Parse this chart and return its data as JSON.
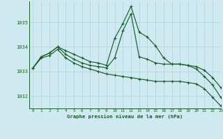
{
  "background_color": "#ceeaf0",
  "grid_color": "#aad4de",
  "line_color": "#1a5c2a",
  "title": "Graphe pression niveau de la mer (hPa)",
  "xlim": [
    -0.5,
    23
  ],
  "ylim": [
    1031.5,
    1035.85
  ],
  "yticks": [
    1032,
    1033,
    1034,
    1035
  ],
  "xticks": [
    0,
    1,
    2,
    3,
    4,
    5,
    6,
    7,
    8,
    9,
    10,
    11,
    12,
    13,
    14,
    15,
    16,
    17,
    18,
    19,
    20,
    21,
    22,
    23
  ],
  "series": [
    {
      "x": [
        0,
        1,
        2,
        3,
        4,
        5,
        6,
        7,
        8,
        9,
        10,
        11,
        12,
        13,
        14,
        15,
        16,
        17,
        18,
        19,
        20,
        21,
        22,
        23
      ],
      "y": [
        1033.15,
        1033.6,
        1033.75,
        1034.0,
        1033.85,
        1033.7,
        1033.55,
        1033.4,
        1033.35,
        1033.25,
        1034.35,
        1034.95,
        1035.65,
        1034.6,
        1034.4,
        1034.05,
        1033.55,
        1033.3,
        1033.3,
        1033.25,
        1033.2,
        1033.05,
        1032.75,
        1032.35
      ]
    },
    {
      "x": [
        0,
        1,
        2,
        3,
        4,
        5,
        6,
        7,
        8,
        9,
        10,
        11,
        12,
        13,
        14,
        15,
        16,
        17,
        18,
        19,
        20,
        21,
        22,
        23
      ],
      "y": [
        1033.15,
        1033.6,
        1033.75,
        1034.0,
        1033.7,
        1033.5,
        1033.35,
        1033.25,
        1033.2,
        1033.15,
        1033.55,
        1034.65,
        1035.35,
        1033.6,
        1033.5,
        1033.35,
        1033.3,
        1033.3,
        1033.3,
        1033.25,
        1033.1,
        1032.8,
        1032.45,
        1031.95
      ]
    },
    {
      "x": [
        0,
        1,
        2,
        3,
        4,
        5,
        6,
        7,
        8,
        9,
        10,
        11,
        12,
        13,
        14,
        15,
        16,
        17,
        18,
        19,
        20,
        21,
        22,
        23
      ],
      "y": [
        1033.15,
        1033.55,
        1033.65,
        1033.9,
        1033.55,
        1033.35,
        1033.2,
        1033.1,
        1033.0,
        1032.9,
        1032.85,
        1032.8,
        1032.75,
        1032.7,
        1032.65,
        1032.6,
        1032.6,
        1032.6,
        1032.6,
        1032.55,
        1032.5,
        1032.3,
        1031.95,
        1031.6
      ]
    }
  ]
}
